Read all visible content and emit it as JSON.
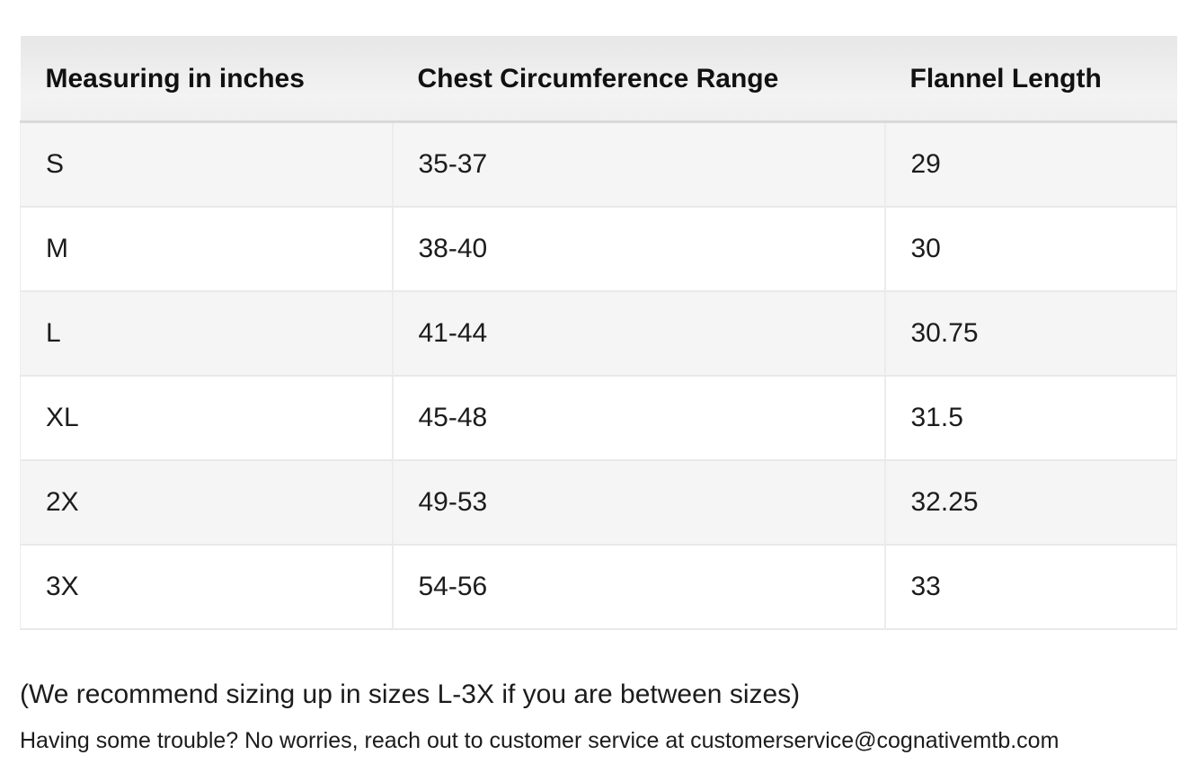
{
  "table": {
    "headers": [
      "Measuring in inches",
      "Chest Circumference Range",
      "Flannel Length"
    ],
    "rows": [
      [
        "S",
        "35-37",
        "29"
      ],
      [
        "M",
        "38-40",
        "30"
      ],
      [
        "L",
        "41-44",
        "30.75"
      ],
      [
        "XL",
        "45-48",
        "31.5"
      ],
      [
        "2X",
        "49-53",
        "32.25"
      ],
      [
        "3X",
        "54-56",
        "33"
      ]
    ]
  },
  "notes": {
    "sizing_note": "(We recommend sizing up in sizes L-3X if you are between sizes)",
    "support_note": "Having some trouble? No worries, reach out to customer service at customerservice@cognativemtb.com"
  },
  "colors": {
    "header_bg_top": "#e7e7e7",
    "header_bg_bottom": "#f3f3f3",
    "row_alt_bg": "#f5f5f5",
    "row_bg": "#ffffff",
    "border": "#e9e9e9",
    "header_border_bottom": "#d9d9d9",
    "text": "#1c1c1c"
  }
}
